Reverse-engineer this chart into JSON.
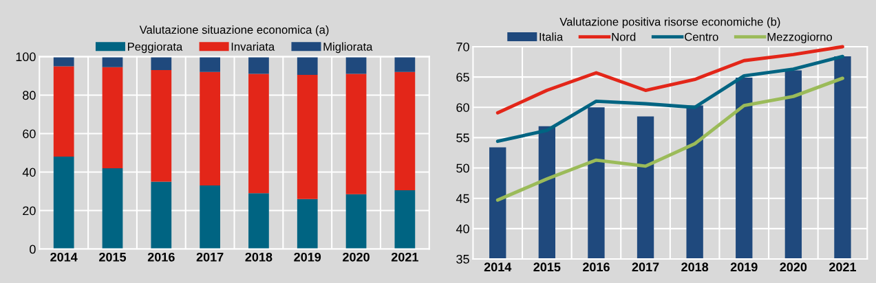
{
  "chart_data": [
    {
      "type": "bar",
      "title": "Valutazione situazione economica (a)",
      "stacked": true,
      "categories": [
        "2014",
        "2015",
        "2016",
        "2017",
        "2018",
        "2019",
        "2020",
        "2021"
      ],
      "series": [
        {
          "name": "Peggiorata",
          "color": "#006482",
          "values": [
            48,
            42,
            35,
            33,
            29,
            26,
            28.5,
            30.5
          ]
        },
        {
          "name": "Invariata",
          "color": "#e32619",
          "values": [
            47,
            52.5,
            58,
            59,
            62,
            64.5,
            62.5,
            61.5
          ]
        },
        {
          "name": "Migliorata",
          "color": "#1f497d",
          "values": [
            5,
            5.5,
            7,
            8,
            9,
            9.5,
            9,
            8
          ]
        }
      ],
      "ylim": [
        0,
        100
      ],
      "yticks": [
        0,
        20,
        40,
        60,
        80,
        100
      ],
      "grid": true,
      "legend": "top"
    },
    {
      "type": "bar",
      "title": "Valutazione positiva risorse economiche (b)",
      "categories": [
        "2014",
        "2015",
        "2016",
        "2017",
        "2018",
        "2019",
        "2020",
        "2021"
      ],
      "series": [
        {
          "name": "Italia",
          "color": "#1f497d",
          "values": [
            53.4,
            56.9,
            60,
            58.5,
            60.3,
            64.9,
            66.1,
            68.4
          ]
        },
        {
          "name": "Nord",
          "type": "line",
          "color": "#e32619",
          "values": [
            59.1,
            62.8,
            65.7,
            62.8,
            64.6,
            67.7,
            68.7,
            70
          ]
        },
        {
          "name": "Centro",
          "type": "line",
          "color": "#006482",
          "values": [
            54.4,
            56.2,
            61,
            60.6,
            60,
            65.2,
            66.3,
            68.4
          ]
        },
        {
          "name": "Mezzogiorno",
          "type": "line",
          "color": "#9bbb59",
          "values": [
            44.7,
            48.2,
            51.3,
            50.3,
            54,
            60.3,
            61.8,
            64.8
          ]
        }
      ],
      "ylim": [
        35,
        70
      ],
      "yticks": [
        35,
        40,
        45,
        50,
        55,
        60,
        65,
        70
      ],
      "grid": true,
      "legend": "top"
    }
  ]
}
